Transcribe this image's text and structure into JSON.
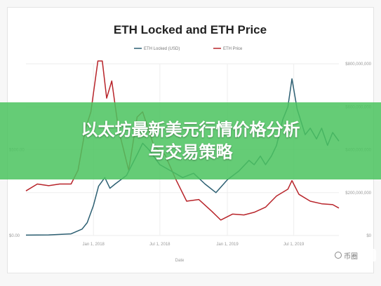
{
  "banner": {
    "line1": "以太坊最新美元行情价格分析",
    "line2": "与交易策略"
  },
  "watermark": {
    "text": "币圈"
  },
  "colors": {
    "locked": "#2c5f72",
    "price": "#b8242a",
    "banner": "#4cc460"
  },
  "chart_data": {
    "type": "line",
    "title": "ETH Locked and ETH Price",
    "xlabel": "Date",
    "x_ticks": [
      "Jan 1, 2018",
      "Jul 1, 2018",
      "Jan 1, 2019",
      "Jul 1, 2019"
    ],
    "left_axis": {
      "ticks": [
        "$0.00",
        "$500.00"
      ],
      "range": [
        0,
        1000
      ]
    },
    "right_axis": {
      "ticks": [
        "$0",
        "$200,000,000",
        "$400,000,000",
        "$600,000,000",
        "$800,000,000"
      ],
      "range": [
        0,
        800000000
      ]
    },
    "legend_position": "top-center",
    "grid": true,
    "series": [
      {
        "name": "ETH Locked (USD)",
        "axis": "right",
        "x": [
          "2017-07-01",
          "2017-09-01",
          "2017-11-01",
          "2017-12-01",
          "2017-12-15",
          "2018-01-01",
          "2018-01-15",
          "2018-02-01",
          "2018-02-15",
          "2018-03-01",
          "2018-04-01",
          "2018-05-01",
          "2018-05-15",
          "2018-06-01",
          "2018-07-01",
          "2018-08-01",
          "2018-09-01",
          "2018-10-01",
          "2018-11-01",
          "2018-12-01",
          "2019-01-01",
          "2019-02-01",
          "2019-03-01",
          "2019-03-15",
          "2019-04-01",
          "2019-04-15",
          "2019-05-01",
          "2019-05-15",
          "2019-06-01",
          "2019-06-15",
          "2019-06-26",
          "2019-07-10",
          "2019-08-01",
          "2019-08-15",
          "2019-09-01",
          "2019-09-15",
          "2019-10-01",
          "2019-10-15",
          "2019-11-01"
        ],
        "values": [
          2000000,
          3000000,
          8000000,
          30000000,
          60000000,
          140000000,
          230000000,
          270000000,
          220000000,
          240000000,
          280000000,
          380000000,
          430000000,
          400000000,
          330000000,
          300000000,
          270000000,
          290000000,
          240000000,
          200000000,
          260000000,
          300000000,
          350000000,
          330000000,
          370000000,
          330000000,
          370000000,
          420000000,
          540000000,
          600000000,
          730000000,
          590000000,
          470000000,
          500000000,
          450000000,
          500000000,
          420000000,
          480000000,
          440000000
        ]
      },
      {
        "name": "ETH Price",
        "axis": "left",
        "x": [
          "2017-07-01",
          "2017-08-01",
          "2017-09-01",
          "2017-10-01",
          "2017-11-01",
          "2017-11-20",
          "2017-12-10",
          "2017-12-25",
          "2018-01-13",
          "2018-01-25",
          "2018-02-06",
          "2018-02-20",
          "2018-03-10",
          "2018-04-07",
          "2018-04-30",
          "2018-05-15",
          "2018-06-15",
          "2018-07-15",
          "2018-08-15",
          "2018-09-12",
          "2018-10-15",
          "2018-11-20",
          "2018-12-14",
          "2019-01-15",
          "2019-02-15",
          "2019-03-15",
          "2019-04-15",
          "2019-05-15",
          "2019-06-15",
          "2019-06-26",
          "2019-07-15",
          "2019-08-15",
          "2019-09-15",
          "2019-10-15",
          "2019-11-01"
        ],
        "values": [
          260,
          300,
          290,
          300,
          300,
          380,
          620,
          720,
          1380,
          1060,
          800,
          900,
          620,
          380,
          690,
          720,
          520,
          470,
          320,
          200,
          210,
          140,
          90,
          125,
          120,
          135,
          165,
          230,
          270,
          320,
          240,
          200,
          185,
          180,
          160
        ]
      }
    ]
  }
}
